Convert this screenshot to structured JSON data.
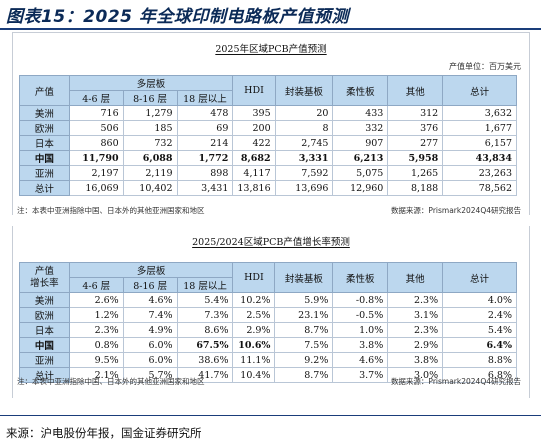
{
  "figure_title": "图表15：2025 年全球印制电路板产值预测",
  "table1": {
    "title": "2025年区域PCB产值预测",
    "unit": "产值单位：百万美元",
    "header": {
      "region": "产值",
      "multilayer": "多层板",
      "sub": [
        "4-6 层",
        "8-16 层",
        "18 层以上"
      ],
      "cols": [
        "HDI",
        "封装基板",
        "柔性板",
        "其他",
        "总计"
      ]
    },
    "rows": [
      {
        "region": "美洲",
        "bold": false,
        "values": [
          "716",
          "1,279",
          "478",
          "395",
          "20",
          "433",
          "312",
          "3,632"
        ]
      },
      {
        "region": "欧洲",
        "bold": false,
        "values": [
          "506",
          "185",
          "69",
          "200",
          "8",
          "332",
          "376",
          "1,677"
        ]
      },
      {
        "region": "日本",
        "bold": false,
        "values": [
          "860",
          "732",
          "214",
          "422",
          "2,745",
          "907",
          "277",
          "6,157"
        ]
      },
      {
        "region": "中国",
        "bold": true,
        "values": [
          "11,790",
          "6,088",
          "1,772",
          "8,682",
          "3,331",
          "6,213",
          "5,958",
          "43,834"
        ]
      },
      {
        "region": "亚洲",
        "bold": false,
        "values": [
          "2,197",
          "2,119",
          "898",
          "4,117",
          "7,592",
          "5,075",
          "1,265",
          "23,263"
        ]
      },
      {
        "region": "总计",
        "bold": false,
        "values": [
          "16,069",
          "10,402",
          "3,431",
          "13,816",
          "13,696",
          "12,960",
          "8,188",
          "78,562"
        ]
      }
    ],
    "note": "注：本表中亚洲指除中国、日本外的其他亚洲国家和地区",
    "source": "数据来源：Prismark2024Q4研究报告"
  },
  "table2": {
    "title": "2025/2024区域PCB产值增长率预测",
    "header": {
      "region_line1": "产值",
      "region_line2": "增长率",
      "multilayer": "多层板",
      "sub": [
        "4-6 层",
        "8-16 层",
        "18 层以上"
      ],
      "cols": [
        "HDI",
        "封装基板",
        "柔性板",
        "其他",
        "总计"
      ]
    },
    "rows": [
      {
        "region": "美洲",
        "values": [
          "2.6%",
          "4.6%",
          "5.4%",
          "10.2%",
          "5.9%",
          "-0.8%",
          "2.3%",
          "4.0%"
        ],
        "bold_idx": []
      },
      {
        "region": "欧洲",
        "values": [
          "1.2%",
          "7.4%",
          "7.3%",
          "2.5%",
          "23.1%",
          "-0.5%",
          "3.1%",
          "2.4%"
        ],
        "bold_idx": []
      },
      {
        "region": "日本",
        "values": [
          "2.3%",
          "4.9%",
          "8.6%",
          "2.9%",
          "8.7%",
          "1.0%",
          "2.3%",
          "5.4%"
        ],
        "bold_idx": []
      },
      {
        "region": "中国",
        "values": [
          "0.8%",
          "6.0%",
          "67.5%",
          "10.6%",
          "7.5%",
          "3.8%",
          "2.9%",
          "6.4%"
        ],
        "bold_idx": [
          2,
          3,
          7
        ],
        "bold_region": true
      },
      {
        "region": "亚洲",
        "values": [
          "9.5%",
          "6.0%",
          "38.6%",
          "11.1%",
          "9.2%",
          "4.6%",
          "3.8%",
          "8.8%"
        ],
        "bold_idx": []
      },
      {
        "region": "总计",
        "values": [
          "2.1%",
          "5.7%",
          "41.7%",
          "10.4%",
          "8.7%",
          "3.7%",
          "3.0%",
          "6.8%"
        ],
        "bold_idx": []
      }
    ],
    "note": "注：本表中亚洲指除中国、日本外的其他亚洲国家和地区",
    "source": "数据来源：Prismark2024Q4研究报告"
  },
  "source": "来源：沪电股份年报，国金证券研究所",
  "colors": {
    "header_bg": "#bcd7ee",
    "title_blue": "#0b2a57",
    "rule": "#1a3d7a"
  }
}
